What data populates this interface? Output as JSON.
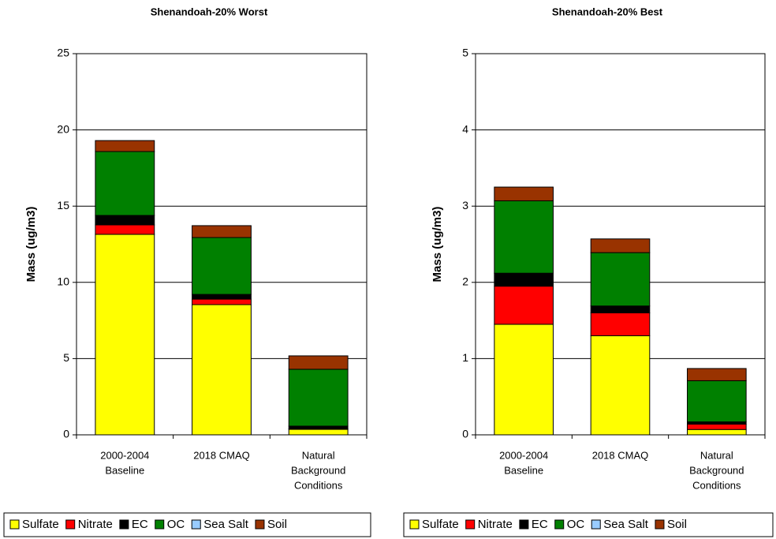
{
  "chart_data": [
    {
      "type": "stacked-bar",
      "title": "Shenandoah-20% Worst",
      "y_label": "Mass (ug/m3)",
      "categories": [
        [
          "2000-2004",
          "Baseline"
        ],
        [
          "2018 CMAQ"
        ],
        [
          "Natural",
          "Background",
          "Conditions"
        ]
      ],
      "ylim": [
        0,
        25
      ],
      "yticks": [
        0,
        5,
        10,
        15,
        20,
        25
      ],
      "grid": true,
      "series": [
        {
          "name": "Sulfate",
          "color": "#FFFF00",
          "values": [
            13.15,
            8.54,
            0.36
          ]
        },
        {
          "name": "Nitrate",
          "color": "#FF0000",
          "values": [
            0.62,
            0.36,
            0.05
          ]
        },
        {
          "name": "EC",
          "color": "#000000",
          "values": [
            0.62,
            0.31,
            0.16
          ]
        },
        {
          "name": "OC",
          "color": "#008000",
          "values": [
            4.19,
            3.73,
            3.73
          ]
        },
        {
          "name": "Sea Salt",
          "color": "#99CCFF",
          "values": [
            0,
            0,
            0
          ]
        },
        {
          "name": "Soil",
          "color": "#993300",
          "values": [
            0.72,
            0.78,
            0.88
          ]
        }
      ]
    },
    {
      "type": "stacked-bar",
      "title": "Shenandoah-20% Best",
      "y_label": "Mass (ug/m3)",
      "categories": [
        [
          "2000-2004",
          "Baseline"
        ],
        [
          "2018 CMAQ"
        ],
        [
          "Natural",
          "Background",
          "Conditions"
        ]
      ],
      "ylim": [
        0,
        5
      ],
      "yticks": [
        0,
        1,
        2,
        3,
        4,
        5
      ],
      "grid": true,
      "series": [
        {
          "name": "Sulfate",
          "color": "#FFFF00",
          "values": [
            1.45,
            1.3,
            0.07
          ]
        },
        {
          "name": "Nitrate",
          "color": "#FF0000",
          "values": [
            0.5,
            0.3,
            0.07
          ]
        },
        {
          "name": "EC",
          "color": "#000000",
          "values": [
            0.17,
            0.09,
            0.03
          ]
        },
        {
          "name": "OC",
          "color": "#008000",
          "values": [
            0.95,
            0.7,
            0.54
          ]
        },
        {
          "name": "Sea Salt",
          "color": "#99CCFF",
          "values": [
            0,
            0,
            0
          ]
        },
        {
          "name": "Soil",
          "color": "#993300",
          "values": [
            0.18,
            0.18,
            0.16
          ]
        }
      ]
    }
  ]
}
